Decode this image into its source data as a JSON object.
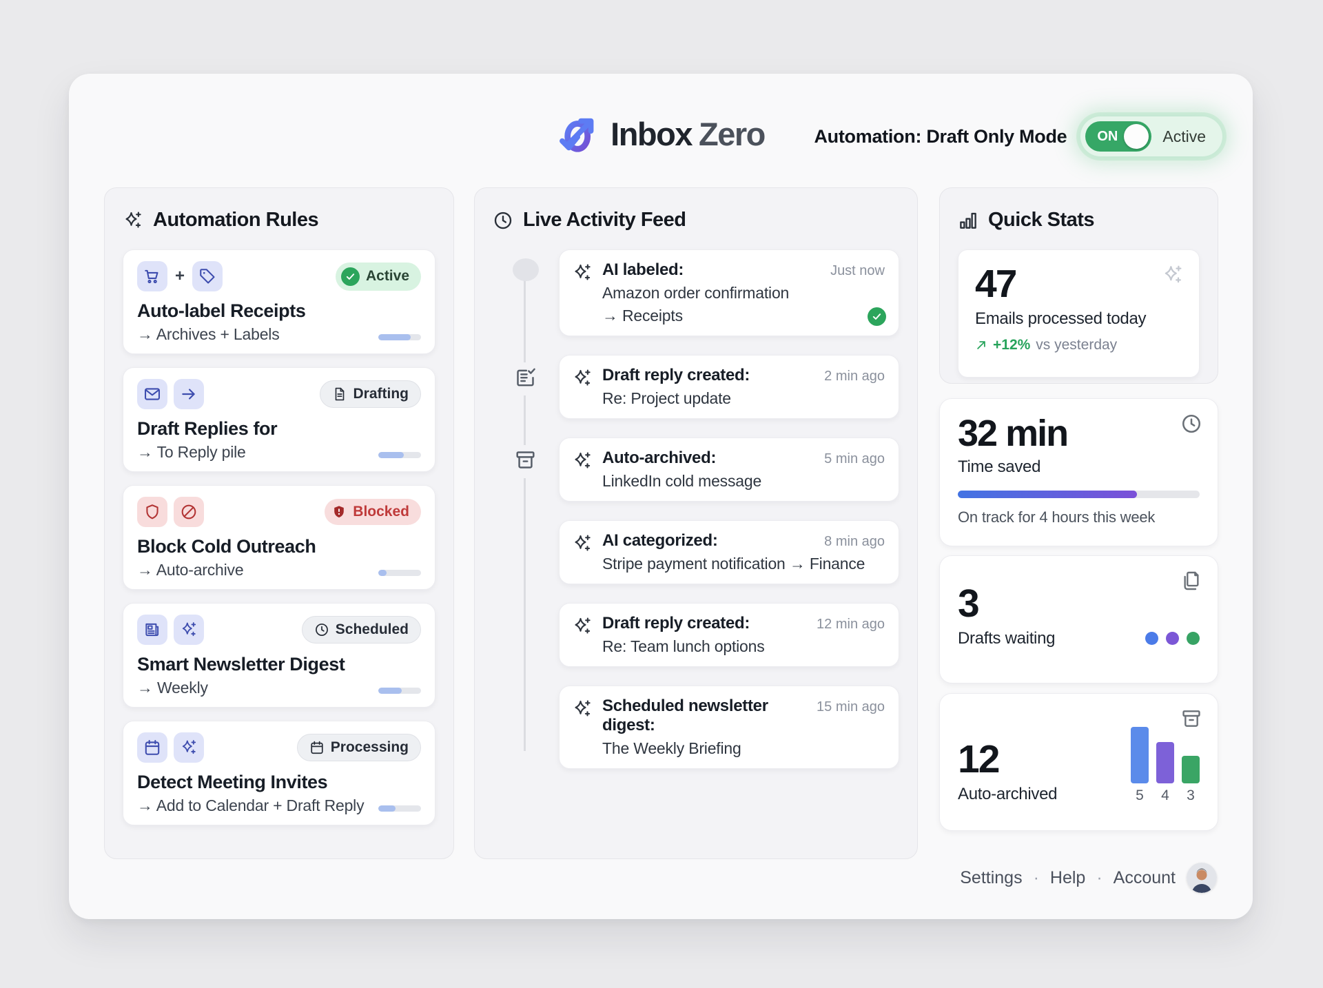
{
  "header": {
    "app_name_primary": "Inbox",
    "app_name_secondary": "Zero",
    "automation_label": "Automation: Draft Only Mode",
    "toggle_on_label": "ON",
    "toggle_status": "Active"
  },
  "automation_rules": {
    "title": "Automation Rules",
    "rules": [
      {
        "icons": [
          "cart-icon",
          "tag-icon"
        ],
        "icon_separator": "+",
        "badge": "Active",
        "badge_type": "active",
        "title": "Auto-label Receipts",
        "subtitle": "→ Archives + Labels",
        "progress": 75
      },
      {
        "icons": [
          "mail-icon",
          "arrow-right-icon"
        ],
        "badge": "Drafting",
        "badge_type": "neutral",
        "badge_icon": "file-text-icon",
        "title": "Draft Replies for",
        "subtitle": "→ To Reply pile",
        "progress": 60
      },
      {
        "icons": [
          "shield-icon",
          "ban-icon"
        ],
        "badge": "Blocked",
        "badge_type": "blocked",
        "badge_icon": "shield-alert-icon",
        "title": "Block Cold Outreach",
        "subtitle": "→ Auto-archive",
        "progress": 20
      },
      {
        "icons": [
          "newspaper-icon",
          "sparkles-icon"
        ],
        "badge": "Scheduled",
        "badge_type": "neutral",
        "badge_icon": "clock-icon",
        "title": "Smart Newsletter Digest",
        "subtitle": "→ Weekly",
        "progress": 55
      },
      {
        "icons": [
          "calendar-icon",
          "sparkles-icon"
        ],
        "badge": "Processing",
        "badge_type": "neutral",
        "badge_icon": "calendar-icon",
        "title": "Detect Meeting Invites",
        "subtitle": "→ Add to Calendar + Draft Reply",
        "progress": 40
      }
    ]
  },
  "activity_feed": {
    "title": "Live Activity Feed",
    "items": [
      {
        "title": "AI labeled:",
        "detail": "Amazon order confirmation",
        "detail2": "→ Receipts",
        "time": "Just now",
        "status": "success"
      },
      {
        "title": "Draft reply created:",
        "detail": "Re: Project update",
        "time": "2 min ago"
      },
      {
        "title": "Auto-archived:",
        "detail": "LinkedIn cold message",
        "time": "5 min ago"
      },
      {
        "title": "AI categorized:",
        "detail": "Stripe payment notification → Finance",
        "time": "8 min ago"
      },
      {
        "title": "Draft reply created:",
        "detail": "Re: Team lunch options",
        "time": "12 min ago"
      },
      {
        "title": "Scheduled newsletter digest:",
        "detail": "The Weekly Briefing",
        "time": "15 min ago"
      }
    ]
  },
  "quick_stats": {
    "title": "Quick Stats",
    "emails_processed": {
      "value": "47",
      "label": "Emails processed today",
      "delta": "+12%",
      "delta_note": "vs yesterday"
    },
    "time_saved": {
      "value": "32 min",
      "label": "Time saved",
      "progress": 74,
      "note": "On track for 4 hours this week"
    },
    "drafts_waiting": {
      "value": "3",
      "label": "Drafts waiting",
      "dots": [
        "#4b7be8",
        "#7b57d6",
        "#37a364"
      ]
    },
    "auto_archived": {
      "value": "12",
      "label": "Auto-archived",
      "chart": {
        "type": "bar",
        "values": [
          5,
          4,
          3
        ],
        "labels": [
          "5",
          "4",
          "3"
        ],
        "colors": [
          "#5b8bea",
          "#7d61d8",
          "#3aa565"
        ],
        "heights": [
          82,
          60,
          40
        ]
      }
    }
  },
  "footer": {
    "links": [
      "Settings",
      "Help",
      "Account"
    ],
    "separator": "·"
  },
  "colors": {
    "accent_green": "#36a766",
    "indigo": "#3d4cae",
    "red": "#b23434",
    "progress_fill": "#a9bfee",
    "gradient_start": "#4273e3",
    "gradient_end": "#7b50d8"
  }
}
